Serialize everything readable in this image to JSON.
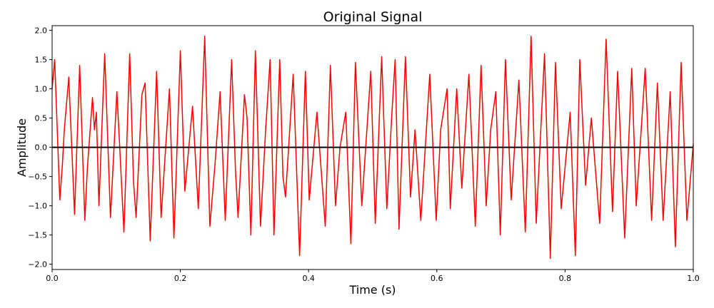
{
  "chart_data": {
    "type": "line",
    "title": "Original Signal",
    "x_label": "Time (s)",
    "y_label": "Amplitude",
    "color": "#ff0000",
    "hline": 0,
    "hline_color": "#000000",
    "x": [
      0.0,
      0.004,
      0.012,
      0.016,
      0.019,
      0.026,
      0.035,
      0.043,
      0.051,
      0.055,
      0.063,
      0.066,
      0.069,
      0.073,
      0.082,
      0.091,
      0.101,
      0.105,
      0.112,
      0.121,
      0.127,
      0.131,
      0.14,
      0.145,
      0.153,
      0.163,
      0.17,
      0.183,
      0.19,
      0.2,
      0.207,
      0.219,
      0.228,
      0.238,
      0.246,
      0.254,
      0.262,
      0.27,
      0.28,
      0.286,
      0.29,
      0.3,
      0.304,
      0.31,
      0.317,
      0.325,
      0.333,
      0.34,
      0.346,
      0.355,
      0.36,
      0.364,
      0.376,
      0.386,
      0.395,
      0.401,
      0.413,
      0.426,
      0.434,
      0.442,
      0.449,
      0.458,
      0.466,
      0.473,
      0.483,
      0.497,
      0.504,
      0.514,
      0.522,
      0.53,
      0.535,
      0.541,
      0.551,
      0.559,
      0.566,
      0.575,
      0.589,
      0.599,
      0.606,
      0.616,
      0.621,
      0.631,
      0.639,
      0.65,
      0.66,
      0.669,
      0.677,
      0.684,
      0.692,
      0.699,
      0.707,
      0.716,
      0.728,
      0.738,
      0.747,
      0.755,
      0.768,
      0.777,
      0.785,
      0.794,
      0.808,
      0.816,
      0.823,
      0.832,
      0.841,
      0.854,
      0.864,
      0.874,
      0.882,
      0.893,
      0.904,
      0.911,
      0.925,
      0.935,
      0.944,
      0.953,
      0.964,
      0.972,
      0.981,
      0.99,
      1.0
    ],
    "values": [
      1.0,
      1.5,
      -0.9,
      -0.3,
      0.3,
      1.2,
      -1.15,
      1.4,
      -1.25,
      -0.35,
      0.85,
      0.3,
      0.6,
      -1.0,
      1.6,
      -1.2,
      0.95,
      0.1,
      -1.45,
      1.6,
      -0.6,
      -1.2,
      0.9,
      1.1,
      -1.6,
      1.3,
      -1.2,
      1.0,
      -1.55,
      1.65,
      -0.75,
      0.7,
      -1.05,
      1.9,
      -1.35,
      -0.3,
      0.95,
      -1.25,
      1.5,
      -0.4,
      -1.2,
      0.9,
      0.5,
      -1.5,
      1.65,
      -1.35,
      0.3,
      1.5,
      -1.5,
      1.5,
      -0.5,
      -0.85,
      1.25,
      -1.85,
      1.3,
      -0.9,
      0.6,
      -1.35,
      1.4,
      -1.0,
      0.0,
      0.6,
      -1.65,
      1.45,
      -1.0,
      1.3,
      -1.3,
      1.55,
      -1.05,
      0.6,
      1.5,
      -1.4,
      1.55,
      -0.85,
      0.3,
      -1.25,
      1.25,
      -1.25,
      0.3,
      1.0,
      -1.05,
      1.0,
      -0.7,
      1.25,
      -1.35,
      1.4,
      -1.0,
      0.3,
      0.95,
      -1.5,
      1.5,
      -0.9,
      1.15,
      -1.45,
      1.9,
      -1.3,
      1.6,
      -1.9,
      1.45,
      -1.05,
      0.6,
      -1.85,
      1.5,
      -0.65,
      0.5,
      -1.3,
      1.85,
      -1.1,
      1.3,
      -1.55,
      1.35,
      -1.0,
      1.35,
      -1.25,
      1.1,
      -1.25,
      0.95,
      -1.7,
      1.45,
      -1.25,
      0.05
    ],
    "xlim": [
      0,
      1
    ],
    "ylim": [
      -2.09,
      2.08
    ],
    "xticks": [
      {
        "value": 0,
        "label": "0.0"
      },
      {
        "value": 0.2,
        "label": "0.2"
      },
      {
        "value": 0.4,
        "label": "0.4"
      },
      {
        "value": 0.6,
        "label": "0.6"
      },
      {
        "value": 0.8,
        "label": "0.8"
      },
      {
        "value": 1,
        "label": "1.0"
      }
    ],
    "yticks": [
      {
        "value": -2,
        "label": "−2.0"
      },
      {
        "value": -1.5,
        "label": "−1.5"
      },
      {
        "value": -1,
        "label": "−1.0"
      },
      {
        "value": -0.5,
        "label": "−0.5"
      },
      {
        "value": 0,
        "label": "0.0"
      },
      {
        "value": 0.5,
        "label": "0.5"
      },
      {
        "value": 1,
        "label": "1.0"
      },
      {
        "value": 1.5,
        "label": "1.5"
      },
      {
        "value": 2,
        "label": "2.0"
      }
    ]
  }
}
